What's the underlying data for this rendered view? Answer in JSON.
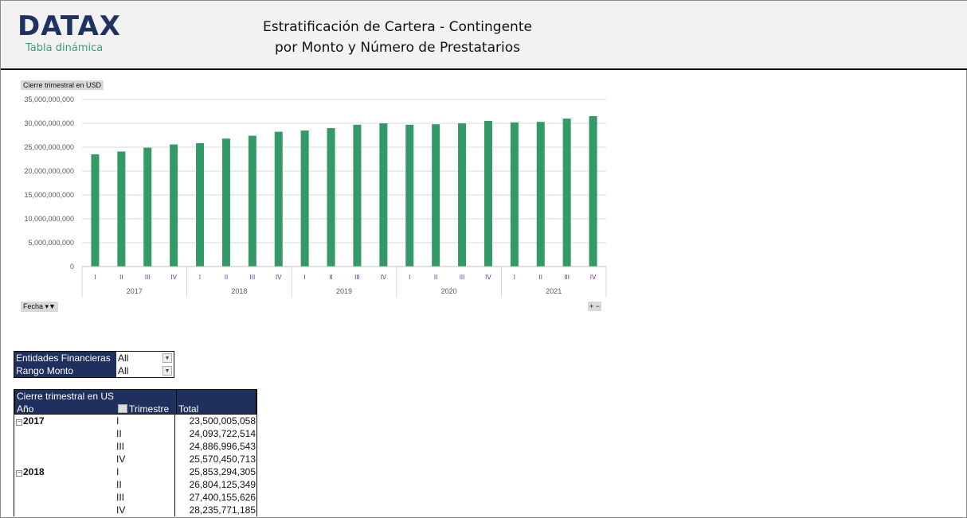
{
  "header": {
    "logo": "DATAX",
    "logo_subtitle": "Tabla dinámica",
    "title_line1": "Estratificación de Cartera - Contingente",
    "title_line2": "por Monto y Número de Prestatarios"
  },
  "chart_field_value": "Cierre trimestral en USD",
  "chart_field_axis": "Fecha",
  "chart_data": {
    "type": "bar",
    "color": "#339966",
    "ylim": [
      0,
      35000000000
    ],
    "yticks": [
      "0",
      "5,000,000,000",
      "10,000,000,000",
      "15,000,000,000",
      "20,000,000,000",
      "25,000,000,000",
      "30,000,000,000",
      "35,000,000,000"
    ],
    "grid": true,
    "years": [
      "2017",
      "2018",
      "2019",
      "2020",
      "2021"
    ],
    "quarters": [
      "I",
      "II",
      "III",
      "IV"
    ],
    "values": [
      23500005058,
      24093722514,
      24886996543,
      25570450713,
      25853294305,
      26804125349,
      27400155626,
      28235771185,
      28500000000,
      29000000000,
      29700000000,
      30000000000,
      29700000000,
      29800000000,
      30000000000,
      30500000000,
      30200000000,
      30300000000,
      31000000000,
      31500000000
    ]
  },
  "filters": [
    {
      "label": "Entidades Financieras",
      "value": "All"
    },
    {
      "label": "Rango Monto",
      "value": "All"
    }
  ],
  "pivot": {
    "header": "Cierre trimestral en US",
    "col_year": "Año",
    "col_quarter": "Trimestre",
    "col_total": "Total",
    "rows": [
      {
        "year": "2017",
        "q": "I",
        "v": "23,500,005,058"
      },
      {
        "year": "",
        "q": "II",
        "v": "24,093,722,514"
      },
      {
        "year": "",
        "q": "III",
        "v": "24,886,996,543"
      },
      {
        "year": "",
        "q": "IV",
        "v": "25,570,450,713"
      },
      {
        "year": "2018",
        "q": "I",
        "v": "25,853,294,305"
      },
      {
        "year": "",
        "q": "II",
        "v": "26,804,125,349"
      },
      {
        "year": "",
        "q": "III",
        "v": "27,400,155,626"
      },
      {
        "year": "",
        "q": "IV",
        "v": "28,235,771,185"
      }
    ]
  }
}
